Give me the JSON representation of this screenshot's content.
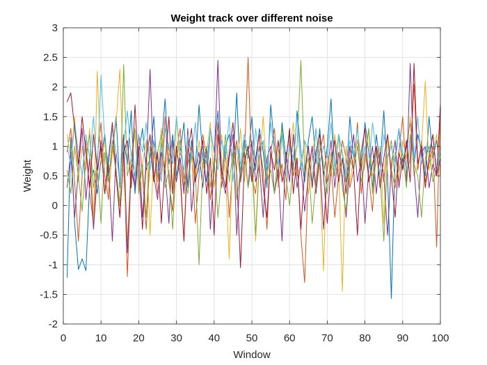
{
  "figure": {
    "title": "Weight track over different noise",
    "xlabel": "Window",
    "ylabel": "Weight"
  },
  "chart_data": {
    "type": "line",
    "title": "Weight track over different noise",
    "xlabel": "Window",
    "ylabel": "Weight",
    "xlim": [
      0,
      100
    ],
    "ylim": [
      -2,
      3
    ],
    "xticks": [
      0,
      10,
      20,
      30,
      40,
      50,
      60,
      70,
      80,
      90,
      100
    ],
    "yticks": [
      -2,
      -1.5,
      -1,
      -0.5,
      0,
      0.5,
      1,
      1.5,
      2,
      2.5,
      3
    ],
    "xtick_labels": [
      "0",
      "10",
      "20",
      "30",
      "40",
      "50",
      "60",
      "70",
      "80",
      "90",
      "100"
    ],
    "ytick_labels": [
      "-2",
      "-1.5",
      "-1",
      "-0.5",
      "0",
      "0.5",
      "1",
      "1.5",
      "2",
      "2.5",
      "3"
    ],
    "grid": true,
    "x_start": 1,
    "x_step": 1,
    "series": [
      {
        "color": "#0072BD",
        "values": [
          -1.22,
          1.15,
          -0.3,
          -1.08,
          -0.9,
          -1.1,
          0.4,
          0.6,
          0.2,
          0.8,
          1.2,
          0.5,
          0.9,
          1.5,
          0.3,
          1.1,
          0.7,
          1.6,
          0.2,
          0.9,
          1.3,
          0.6,
          0.8,
          1.5,
          0.4,
          1.0,
          1.8,
          0.7,
          1.2,
          0.5,
          0.9,
          1.4,
          0.3,
          1.1,
          0.6,
          1.7,
          0.8,
          0.4,
          1.3,
          0.9,
          1.6,
          0.5,
          1.0,
          1.2,
          0.7,
          1.9,
          0.4,
          1.1,
          0.8,
          1.5,
          0.6,
          1.3,
          0.9,
          0.3,
          1.7,
          1.0,
          0.5,
          1.4,
          0.8,
          1.2,
          0.6,
          1.6,
          0.9,
          0.4,
          1.1,
          1.5,
          0.7,
          1.3,
          0.5,
          1.0,
          1.8,
          0.6,
          1.2,
          0.9,
          0.4,
          1.5,
          0.8,
          1.1,
          0.6,
          1.4,
          0.9,
          0.3,
          1.2,
          0.7,
          1.6,
          0.5,
          -1.57,
          0.8,
          1.3,
          0.6,
          1.0,
          1.4,
          0.7,
          1.2,
          0.9,
          0.5,
          1.5,
          0.8,
          1.1,
          0.6
        ]
      },
      {
        "color": "#D95319",
        "values": [
          0.9,
          1.3,
          0.4,
          -0.6,
          0.5,
          1.1,
          0.2,
          -0.3,
          0.8,
          1.4,
          0.5,
          0.1,
          1.0,
          0.6,
          -0.2,
          0.9,
          -1.2,
          0.7,
          0.3,
          1.2,
          0.5,
          -0.4,
          0.8,
          1.1,
          0.2,
          0.6,
          1.5,
          0.4,
          -0.1,
          0.9,
          1.3,
          0.3,
          0.7,
          1.0,
          -0.3,
          0.5,
          1.2,
          0.8,
          0.1,
          0.6,
          1.4,
          0.3,
          0.9,
          -0.2,
          0.7,
          1.1,
          0.4,
          0.8,
          2.5,
          0.5,
          0.2,
          1.0,
          0.6,
          -0.4,
          0.9,
          1.3,
          0.4,
          0.7,
          0.1,
          1.1,
          0.5,
          0.8,
          -0.5,
          -1.3,
          0.6,
          1.0,
          0.3,
          0.9,
          1.2,
          0.4,
          0.7,
          -0.2,
          0.5,
          1.1,
          0.8,
          0.3,
          0.6,
          1.4,
          0.2,
          0.9,
          0.5,
          -0.1,
          1.0,
          0.7,
          0.4,
          1.2,
          0.6,
          0.3,
          0.9,
          1.5,
          0.5,
          0.8,
          2.05,
          0.6,
          1.1,
          0.4,
          0.7,
          1.0,
          -0.7,
          1.7
        ]
      },
      {
        "color": "#EDB120",
        "values": [
          1.2,
          0.8,
          1.5,
          0.4,
          1.0,
          0.6,
          1.3,
          -0.3,
          2.27,
          0.7,
          1.1,
          0.2,
          0.9,
          1.4,
          2.3,
          0.5,
          -0.6,
          0.8,
          1.2,
          0.3,
          0.7,
          1.1,
          -0.5,
          0.9,
          0.4,
          1.3,
          0.6,
          1.0,
          0.2,
          1.5,
          0.7,
          -0.6,
          1.2,
          0.8,
          0.4,
          1.1,
          0.6,
          0.9,
          1.4,
          0.3,
          0.8,
          1.2,
          0.5,
          -0.9,
          1.0,
          0.6,
          1.3,
          0.4,
          0.9,
          1.1,
          -0.6,
          0.7,
          1.5,
          0.5,
          0.8,
          1.0,
          0.3,
          1.2,
          0.6,
          0.9,
          1.4,
          0.5,
          0.7,
          1.1,
          0.2,
          0.8,
          1.3,
          0.6,
          -1.1,
          0.9,
          0.5,
          1.2,
          0.7,
          -1.45,
          1.0,
          0.4,
          0.8,
          1.1,
          0.6,
          0.9,
          1.3,
          0.5,
          0.7,
          1.0,
          -0.3,
          1.2,
          0.6,
          0.9,
          0.4,
          1.1,
          0.8,
          1.5,
          0.5,
          0.7,
          1.0,
          2.1,
          0.6,
          0.9,
          1.2,
          0.5
        ]
      },
      {
        "color": "#7E2F8E",
        "values": [
          0.3,
          0.9,
          -0.2,
          0.6,
          1.3,
          0.1,
          0.8,
          -0.4,
          0.5,
          1.1,
          0.2,
          0.7,
          -0.6,
          0.9,
          0.4,
          1.2,
          -0.8,
          0.6,
          0.3,
          1.0,
          -0.2,
          0.7,
          2.3,
          0.5,
          0.1,
          0.9,
          0.6,
          -0.3,
          1.1,
          0.4,
          0.8,
          0.2,
          1.3,
          -0.1,
          0.6,
          0.9,
          0.3,
          1.0,
          -0.4,
          0.7,
          2.45,
          0.5,
          0.2,
          0.8,
          1.2,
          -0.5,
          0.6,
          0.9,
          0.3,
          1.1,
          0.4,
          0.7,
          -0.2,
          0.8,
          1.0,
          0.2,
          0.6,
          -0.6,
          0.9,
          0.4,
          1.2,
          0.3,
          0.7,
          -0.1,
          0.5,
          1.0,
          0.2,
          0.8,
          -0.4,
          0.6,
          1.1,
          0.3,
          0.9,
          0.5,
          -0.2,
          0.7,
          1.2,
          0.4,
          0.8,
          -0.3,
          0.6,
          1.0,
          0.2,
          0.9,
          0.5,
          -0.5,
          0.7,
          1.1,
          0.3,
          0.8,
          0.4,
          2.4,
          0.6,
          -0.2,
          0.9,
          1.0,
          0.3,
          0.7,
          0.5,
          0.8
        ]
      },
      {
        "color": "#77AC30",
        "values": [
          0.6,
          0.2,
          1.0,
          0.5,
          -0.1,
          0.8,
          1.2,
          0.3,
          0.7,
          -0.3,
          0.9,
          0.4,
          1.1,
          0.6,
          0.0,
          2.38,
          0.5,
          0.8,
          1.3,
          0.2,
          0.7,
          -0.2,
          1.0,
          0.4,
          0.9,
          1.2,
          0.3,
          0.6,
          -0.4,
          0.8,
          1.1,
          0.5,
          0.2,
          0.9,
          0.6,
          -1.0,
          0.7,
          1.0,
          0.3,
          0.8,
          -0.2,
          0.5,
          1.2,
          0.4,
          0.9,
          0.1,
          0.6,
          1.0,
          0.3,
          0.7,
          -0.5,
          0.8,
          1.1,
          0.4,
          0.6,
          0.2,
          0.9,
          1.3,
          0.5,
          0.0,
          0.7,
          1.0,
          2.45,
          0.6,
          0.8,
          -0.3,
          0.4,
          1.1,
          0.7,
          0.2,
          0.9,
          0.5,
          1.2,
          0.3,
          -0.1,
          0.8,
          0.6,
          1.0,
          0.4,
          0.7,
          1.3,
          0.2,
          0.9,
          0.5,
          -0.6,
          0.8,
          1.1,
          0.4,
          0.6,
          0.9,
          0.3,
          1.2,
          0.7,
          0.5,
          -0.2,
          0.8,
          1.0,
          0.4,
          0.6,
          0.9
        ]
      },
      {
        "color": "#4DBEEE",
        "values": [
          1.0,
          0.7,
          1.4,
          0.9,
          0.5,
          1.2,
          0.8,
          1.5,
          0.6,
          2.2,
          1.1,
          0.7,
          1.3,
          0.9,
          0.4,
          1.0,
          1.6,
          0.8,
          0.5,
          1.2,
          0.9,
          1.4,
          0.6,
          1.1,
          0.8,
          0.4,
          1.3,
          1.0,
          0.7,
          1.5,
          0.9,
          0.6,
          1.2,
          0.8,
          1.4,
          0.5,
          1.0,
          0.7,
          1.3,
          0.9,
          0.6,
          1.1,
          0.8,
          1.5,
          0.4,
          1.0,
          0.7,
          1.2,
          0.9,
          0.5,
          1.3,
          0.8,
          1.1,
          0.6,
          1.4,
          0.9,
          0.7,
          1.2,
          0.5,
          1.0,
          0.8,
          1.5,
          0.6,
          1.1,
          0.9,
          0.4,
          1.3,
          0.7,
          1.0,
          0.8,
          1.4,
          0.6,
          1.2,
          0.9,
          0.5,
          1.1,
          0.8,
          1.3,
          0.7,
          1.0,
          0.6,
          1.4,
          0.9,
          0.5,
          1.2,
          0.8,
          1.0,
          0.7,
          1.3,
          0.9,
          0.6,
          1.1,
          0.8,
          1.5,
          0.7,
          1.0,
          0.9,
          1.2,
          0.6,
          1.0
        ]
      },
      {
        "color": "#A2142F",
        "values": [
          1.75,
          1.9,
          1.3,
          0.7,
          1.5,
          0.9,
          0.3,
          1.2,
          0.6,
          1.0,
          0.2,
          0.8,
          1.4,
          0.5,
          -0.2,
          0.9,
          1.1,
          0.3,
          1.7,
          0.6,
          -0.4,
          0.8,
          1.2,
          0.4,
          0.9,
          -0.3,
          0.7,
          1.5,
          0.2,
          1.0,
          0.5,
          -0.6,
          0.9,
          1.3,
          0.4,
          0.7,
          1.1,
          0.2,
          0.8,
          -0.5,
          1.2,
          0.6,
          0.3,
          0.9,
          1.4,
          0.5,
          -1.05,
          0.7,
          1.0,
          0.4,
          0.8,
          1.2,
          0.3,
          -0.2,
          0.9,
          0.6,
          1.1,
          0.4,
          0.7,
          1.3,
          0.2,
          0.8,
          -0.4,
          0.6,
          1.0,
          0.3,
          0.9,
          1.2,
          0.5,
          -0.3,
          0.7,
          1.1,
          0.4,
          0.8,
          0.2,
          1.0,
          0.6,
          -0.5,
          0.9,
          1.3,
          0.4,
          0.7,
          1.0,
          0.3,
          0.8,
          1.2,
          0.5,
          -0.2,
          0.9,
          0.6,
          1.1,
          0.4,
          2.4,
          0.7,
          1.0,
          0.3,
          0.8,
          1.2,
          0.5,
          1.7
        ]
      }
    ]
  }
}
